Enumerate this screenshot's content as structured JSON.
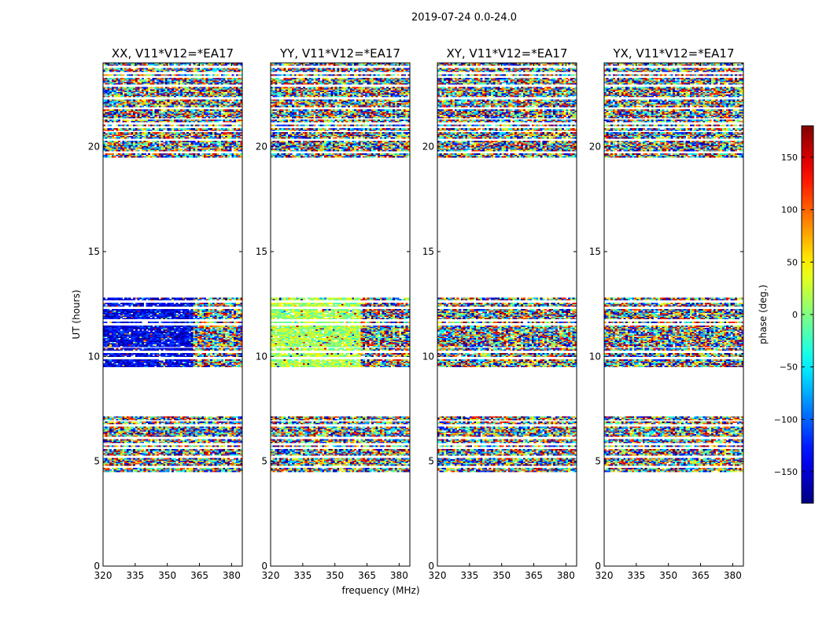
{
  "figure_title": "2019-07-24 0.0-24.0",
  "xlabel": "frequency (MHz)",
  "ylabel": "UT (hours)",
  "colorbar": {
    "label": "phase (deg.)",
    "range": [
      -180,
      180
    ],
    "ticks": [
      "150",
      "100",
      "50",
      "0",
      "−50",
      "−100",
      "−150"
    ],
    "tick_values": [
      150,
      100,
      50,
      0,
      -50,
      -100,
      -150
    ],
    "colormap": "jet",
    "colors": [
      "#000080",
      "#0000ff",
      "#00ffff",
      "#ffff00",
      "#ff0000",
      "#800000"
    ]
  },
  "chart_data": {
    "type": "heatmap",
    "title": "2019-07-24 0.0-24.0",
    "xlabel": "frequency (MHz)",
    "ylabel": "UT (hours)",
    "xlim": [
      320,
      385
    ],
    "ylim": [
      0,
      24
    ],
    "x_ticks": [
      "320",
      "335",
      "350",
      "365",
      "380"
    ],
    "x_tick_values": [
      320,
      335,
      350,
      365,
      380
    ],
    "y_ticks": [
      "0",
      "5",
      "10",
      "15",
      "20"
    ],
    "y_tick_values": [
      0,
      5,
      10,
      15,
      20
    ],
    "value_label": "phase (deg.)",
    "value_range": [
      -180,
      180
    ],
    "data_time_ranges_hours": [
      [
        4.5,
        7.1
      ],
      [
        9.5,
        12.8
      ],
      [
        19.5,
        24.0
      ]
    ],
    "panels": [
      {
        "title": "XX, V11*V12=*EA17",
        "regions": [
          {
            "ut": [
              9.5,
              12.8
            ],
            "freq": [
              320,
              362
            ],
            "phase_mean": -140,
            "phase_spread": 40
          },
          {
            "ut": [
              9.5,
              12.8
            ],
            "freq": [
              362,
              385
            ],
            "phase": "random"
          },
          {
            "ut": [
              4.5,
              7.1
            ],
            "phase": "random"
          },
          {
            "ut": [
              19.5,
              24.0
            ],
            "phase": "random"
          }
        ]
      },
      {
        "title": "YY, V11*V12=*EA17",
        "regions": [
          {
            "ut": [
              9.5,
              12.8
            ],
            "freq": [
              320,
              362
            ],
            "phase_mean": 15,
            "phase_spread": 40
          },
          {
            "ut": [
              9.5,
              12.8
            ],
            "freq": [
              362,
              385
            ],
            "phase": "random"
          },
          {
            "ut": [
              4.5,
              7.1
            ],
            "phase": "random"
          },
          {
            "ut": [
              19.5,
              24.0
            ],
            "phase": "random"
          }
        ]
      },
      {
        "title": "XY, V11*V12=*EA17",
        "regions": [
          {
            "ut": [
              9.5,
              12.8
            ],
            "phase": "random"
          },
          {
            "ut": [
              4.5,
              7.1
            ],
            "phase": "random"
          },
          {
            "ut": [
              19.5,
              24.0
            ],
            "phase": "random"
          }
        ]
      },
      {
        "title": "YX, V11*V12=*EA17",
        "regions": [
          {
            "ut": [
              9.5,
              12.8
            ],
            "phase": "random"
          },
          {
            "ut": [
              4.5,
              7.1
            ],
            "phase": "random"
          },
          {
            "ut": [
              19.5,
              24.0
            ],
            "phase": "random"
          }
        ]
      }
    ],
    "blank_ut_rows": [
      4.7,
      5.2,
      5.6,
      5.8,
      6.1,
      6.7,
      6.9,
      9.9,
      10.2,
      10.4,
      11.5,
      11.7,
      12.3,
      12.6,
      19.7,
      20.3,
      20.7,
      20.9,
      21.1,
      21.3,
      21.8,
      22.3,
      22.9,
      23.3,
      23.5,
      23.8
    ]
  }
}
